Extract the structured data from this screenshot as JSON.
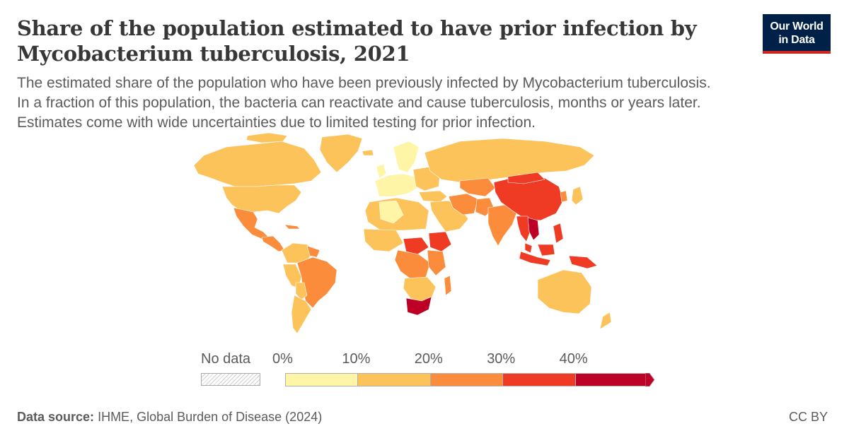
{
  "header": {
    "title": "Share of the population estimated to have prior infection by Mycobacterium tuberculosis, 2021",
    "subtitle_lines": [
      "The estimated share of the population who have been previously infected by Mycobacterium tuberculosis.",
      "In a fraction of this population, the bacteria can reactivate and cause tuberculosis, months or years later.",
      "Estimates come with wide uncertainties due to limited testing for prior infection."
    ]
  },
  "logo": {
    "line1": "Our World",
    "line2": "in Data",
    "bg": "#002147",
    "accent": "#ce261e"
  },
  "legend": {
    "no_data_label": "No data",
    "tick_labels": [
      "0%",
      "10%",
      "20%",
      "30%",
      "40%"
    ],
    "bins": [
      {
        "range": [
          0,
          10
        ],
        "color": "#fef5a6"
      },
      {
        "range": [
          10,
          20
        ],
        "color": "#fdc35b"
      },
      {
        "range": [
          20,
          30
        ],
        "color": "#fb8c3b"
      },
      {
        "range": [
          30,
          40
        ],
        "color": "#ef3b24"
      },
      {
        "range": [
          40,
          null
        ],
        "color": "#bd0026"
      }
    ]
  },
  "footer": {
    "source_label": "Data source:",
    "source_text": "IHME, Global Burden of Disease (2024)",
    "license": "CC BY"
  }
}
